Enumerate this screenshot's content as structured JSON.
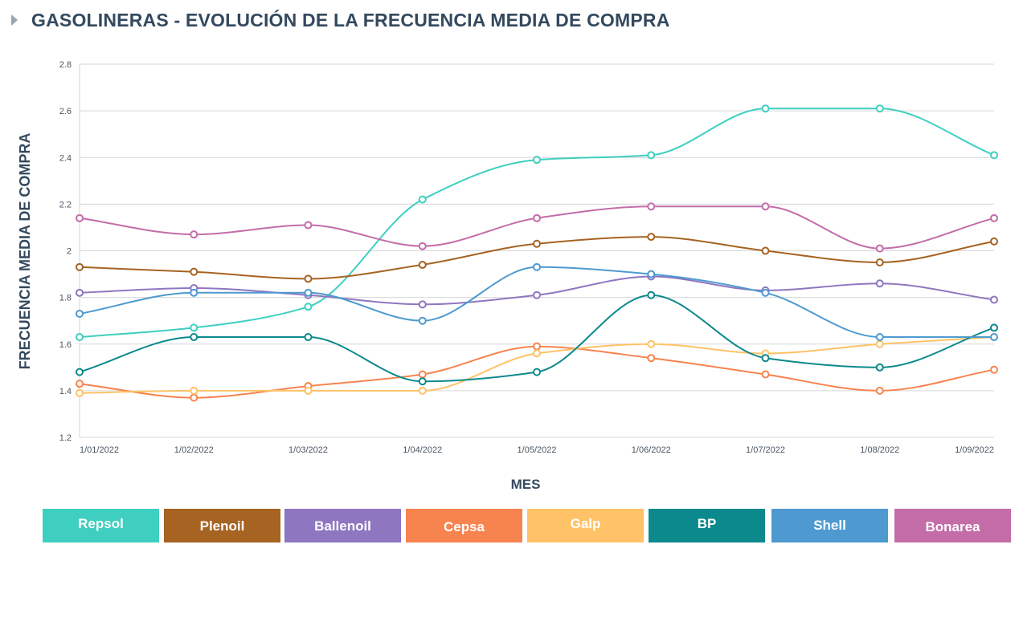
{
  "header": {
    "title": "GASOLINERAS - EVOLUCIÓN DE LA FRECUENCIA MEDIA DE COMPRA"
  },
  "chart_data": {
    "type": "line",
    "title": "GASOLINERAS - EVOLUCIÓN DE LA FRECUENCIA MEDIA DE COMPRA",
    "xlabel": "MES",
    "ylabel": "FRECUENCIA MEDIA DE COMPRA",
    "ylim": [
      1.2,
      2.8
    ],
    "yticks": [
      1.2,
      1.4,
      1.6,
      1.8,
      2,
      2.2,
      2.4,
      2.6,
      2.8
    ],
    "ytick_labels": [
      "1.2",
      "1.4",
      "1.6",
      "1.8",
      "2",
      "2.2",
      "2.4",
      "2.6",
      "2.8"
    ],
    "grid": true,
    "legend_position": "bottom",
    "categories": [
      "1/01/2022",
      "1/02/2022",
      "1/03/2022",
      "1/04/2022",
      "1/05/2022",
      "1/06/2022",
      "1/07/2022",
      "1/08/2022",
      "1/09/2022"
    ],
    "series": [
      {
        "name": "Repsol",
        "color": "#3ecfc0",
        "values": [
          1.63,
          1.67,
          1.76,
          2.22,
          2.39,
          2.41,
          2.61,
          2.61,
          2.41
        ]
      },
      {
        "name": "Plenoil",
        "color": "#a66322",
        "values": [
          1.93,
          1.91,
          1.88,
          1.94,
          2.03,
          2.06,
          2.0,
          1.95,
          2.04
        ]
      },
      {
        "name": "Ballenoil",
        "color": "#8e76c0",
        "values": [
          1.82,
          1.84,
          1.81,
          1.77,
          1.81,
          1.89,
          1.83,
          1.86,
          1.79
        ]
      },
      {
        "name": "Cepsa",
        "color": "#f7834f",
        "values": [
          1.43,
          1.37,
          1.42,
          1.47,
          1.59,
          1.54,
          1.47,
          1.4,
          1.49
        ]
      },
      {
        "name": "Galp",
        "color": "#ffc266",
        "values": [
          1.39,
          1.4,
          1.4,
          1.4,
          1.56,
          1.6,
          1.56,
          1.6,
          1.63
        ]
      },
      {
        "name": "BP",
        "color": "#0c898d",
        "values": [
          1.48,
          1.63,
          1.63,
          1.44,
          1.48,
          1.81,
          1.54,
          1.5,
          1.67
        ]
      },
      {
        "name": "Shell",
        "color": "#4e9ad0",
        "values": [
          1.73,
          1.82,
          1.82,
          1.7,
          1.93,
          1.9,
          1.82,
          1.63,
          1.63
        ]
      },
      {
        "name": "Bonarea",
        "color": "#c46ca8",
        "values": [
          2.14,
          2.07,
          2.11,
          2.02,
          2.14,
          2.19,
          2.19,
          2.01,
          2.14
        ]
      }
    ]
  }
}
